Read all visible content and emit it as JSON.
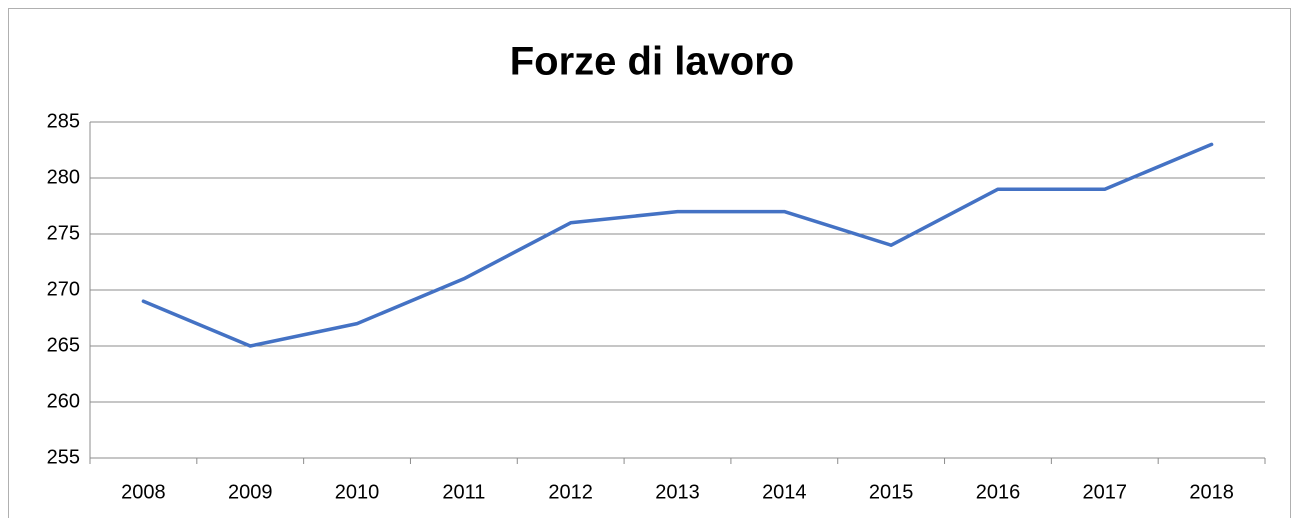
{
  "chart_data": {
    "type": "line",
    "title": "Forze di lavoro",
    "categories": [
      "2008",
      "2009",
      "2010",
      "2011",
      "2012",
      "2013",
      "2014",
      "2015",
      "2016",
      "2017",
      "2018"
    ],
    "values": [
      269,
      265,
      267,
      271,
      276,
      277,
      277,
      274,
      279,
      279,
      283
    ],
    "color": "#4472c4",
    "ylim": [
      255,
      285
    ],
    "yticks": [
      255,
      260,
      265,
      270,
      275,
      280,
      285
    ],
    "grid": true
  }
}
